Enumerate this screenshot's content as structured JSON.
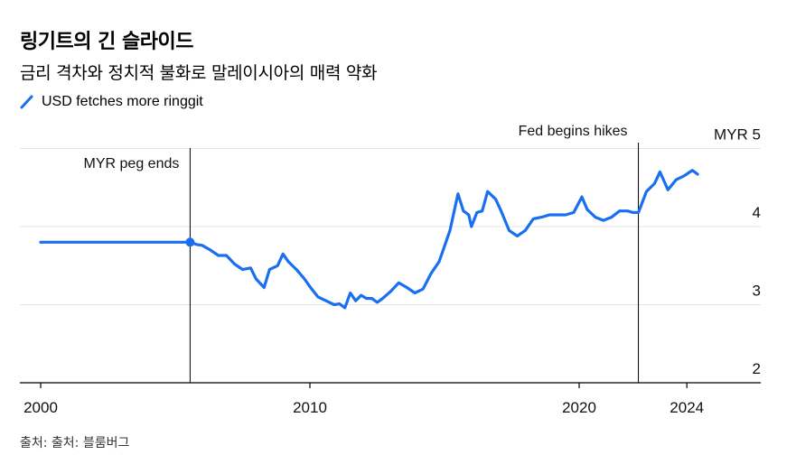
{
  "header": {
    "title": "링기트의 긴 슬라이드",
    "subtitle": "금리 격차와 정치적 불화로 말레이시아의 매력 약화"
  },
  "legend": {
    "label": "USD fetches more ringgit"
  },
  "source": "출처: 출처: 블룸버그",
  "colors": {
    "line": "#1a6ff0",
    "grid": "#e4e4e4",
    "axis": "#000000"
  },
  "chart_data": {
    "type": "line",
    "title": "링기트의 긴 슬라이드",
    "subtitle": "금리 격차와 정치적 불화로 말레이시아의 매력 약화",
    "ylim": [
      2,
      5
    ],
    "xlim": [
      2000,
      2025.8
    ],
    "y_ticks": [
      {
        "value": 5,
        "label": "MYR 5"
      },
      {
        "value": 4,
        "label": "4"
      },
      {
        "value": 3,
        "label": "3"
      },
      {
        "value": 2,
        "label": "2"
      }
    ],
    "x_ticks": [
      {
        "value": 2000,
        "label": "2000"
      },
      {
        "value": 2010,
        "label": "2010"
      },
      {
        "value": 2020,
        "label": "2020"
      },
      {
        "value": 2024,
        "label": "2024"
      }
    ],
    "grid": true,
    "legend_position": "top-left",
    "annotations": [
      {
        "x": 2005.55,
        "label": "MYR peg ends"
      },
      {
        "x": 2022.2,
        "label": "Fed begins hikes"
      }
    ],
    "series": [
      {
        "name": "USD fetches more ringgit",
        "x": [
          2000,
          2005.55,
          2005.8,
          2006.0,
          2006.3,
          2006.6,
          2006.9,
          2007.2,
          2007.5,
          2007.8,
          2008.0,
          2008.3,
          2008.5,
          2008.8,
          2009.0,
          2009.2,
          2009.5,
          2009.8,
          2010.0,
          2010.3,
          2010.6,
          2010.9,
          2011.1,
          2011.3,
          2011.5,
          2011.7,
          2011.9,
          2012.1,
          2012.3,
          2012.5,
          2012.7,
          2013.0,
          2013.3,
          2013.6,
          2013.9,
          2014.2,
          2014.5,
          2014.8,
          2015.0,
          2015.2,
          2015.5,
          2015.7,
          2015.9,
          2016.0,
          2016.2,
          2016.4,
          2016.6,
          2016.9,
          2017.1,
          2017.4,
          2017.7,
          2018.0,
          2018.3,
          2018.6,
          2018.9,
          2019.2,
          2019.5,
          2019.8,
          2020.1,
          2020.3,
          2020.6,
          2020.9,
          2021.2,
          2021.5,
          2021.8,
          2022.0,
          2022.2,
          2022.5,
          2022.8,
          2023.0,
          2023.3,
          2023.6,
          2023.9,
          2024.2,
          2024.4
        ],
        "values": [
          3.8,
          3.8,
          3.77,
          3.76,
          3.7,
          3.63,
          3.63,
          3.52,
          3.45,
          3.47,
          3.33,
          3.22,
          3.45,
          3.5,
          3.65,
          3.55,
          3.45,
          3.33,
          3.23,
          3.1,
          3.05,
          3.0,
          3.01,
          2.96,
          3.15,
          3.05,
          3.12,
          3.08,
          3.08,
          3.03,
          3.08,
          3.17,
          3.28,
          3.22,
          3.15,
          3.2,
          3.4,
          3.55,
          3.75,
          3.95,
          4.42,
          4.2,
          4.15,
          4.0,
          4.18,
          4.2,
          4.45,
          4.35,
          4.2,
          3.95,
          3.88,
          3.95,
          4.1,
          4.12,
          4.15,
          4.15,
          4.15,
          4.18,
          4.38,
          4.22,
          4.12,
          4.08,
          4.12,
          4.2,
          4.2,
          4.18,
          4.18,
          4.45,
          4.55,
          4.7,
          4.47,
          4.6,
          4.65,
          4.72,
          4.67
        ]
      }
    ]
  }
}
